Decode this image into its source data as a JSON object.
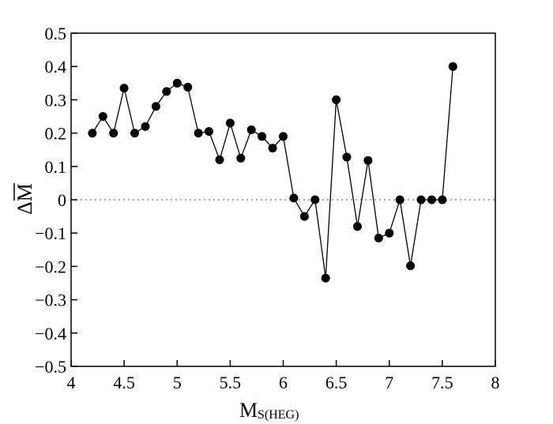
{
  "chart_data": {
    "type": "line",
    "xlabel_main": "M",
    "xlabel_sub": "S(HEG)",
    "ylabel_main": "ΔM",
    "xlim": [
      4,
      8
    ],
    "ylim": [
      -0.5,
      0.5
    ],
    "x_ticks": [
      "4",
      "4.5",
      "5",
      "5.5",
      "6",
      "6.5",
      "7",
      "7.5",
      "8"
    ],
    "y_ticks": [
      "0.5",
      "0.4",
      "0.3",
      "0.2",
      "0.1",
      "0",
      "−0.1",
      "−0.2",
      "−0.3",
      "−0.4",
      "−0.5"
    ],
    "reference_line_y": 0,
    "grid": false,
    "series": [
      {
        "x": [
          4.2,
          4.3,
          4.4,
          4.5,
          4.6,
          4.7,
          4.8,
          4.9,
          5.0,
          5.1,
          5.2,
          5.3,
          5.4,
          5.5,
          5.6,
          5.7,
          5.8,
          5.9,
          6.0,
          6.1,
          6.2,
          6.3,
          6.4,
          6.5,
          6.6,
          6.7,
          6.8,
          6.9,
          7.0,
          7.1,
          7.2,
          7.3,
          7.4,
          7.5,
          7.6
        ],
        "y": [
          0.2,
          0.25,
          0.2,
          0.335,
          0.2,
          0.22,
          0.28,
          0.325,
          0.35,
          0.338,
          0.2,
          0.205,
          0.12,
          0.23,
          0.125,
          0.21,
          0.19,
          0.155,
          0.19,
          0.005,
          -0.05,
          0.0,
          -0.235,
          0.3,
          0.128,
          -0.08,
          0.118,
          -0.115,
          -0.1,
          0.0,
          -0.198,
          0.0,
          0.0,
          0.0,
          0.4
        ]
      }
    ]
  }
}
